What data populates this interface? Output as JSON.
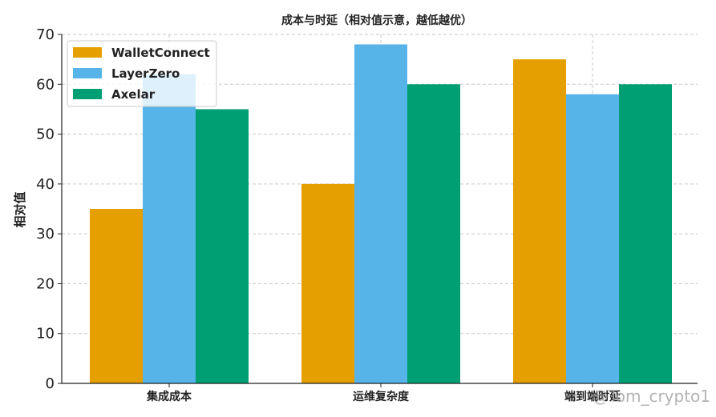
{
  "chart_data": {
    "type": "bar",
    "title": "成本与时延（相对值示意，越低越优）",
    "xlabel": "",
    "ylabel": "相对值",
    "categories": [
      "集成成本",
      "运维复杂度",
      "端到端时延"
    ],
    "series": [
      {
        "name": "WalletConnect",
        "values": [
          35,
          40,
          65
        ],
        "color": "#E69F00"
      },
      {
        "name": "LayerZero",
        "values": [
          62,
          68,
          58
        ],
        "color": "#56B4E9"
      },
      {
        "name": "Axelar",
        "values": [
          55,
          60,
          60
        ],
        "color": "#009E73"
      }
    ],
    "ylim": [
      0,
      70
    ],
    "yticks": [
      0,
      10,
      20,
      30,
      40,
      50,
      60,
      70
    ],
    "grid": true,
    "legend_position": "top-left"
  },
  "watermark": {
    "text": "@Tom_crypto1"
  }
}
